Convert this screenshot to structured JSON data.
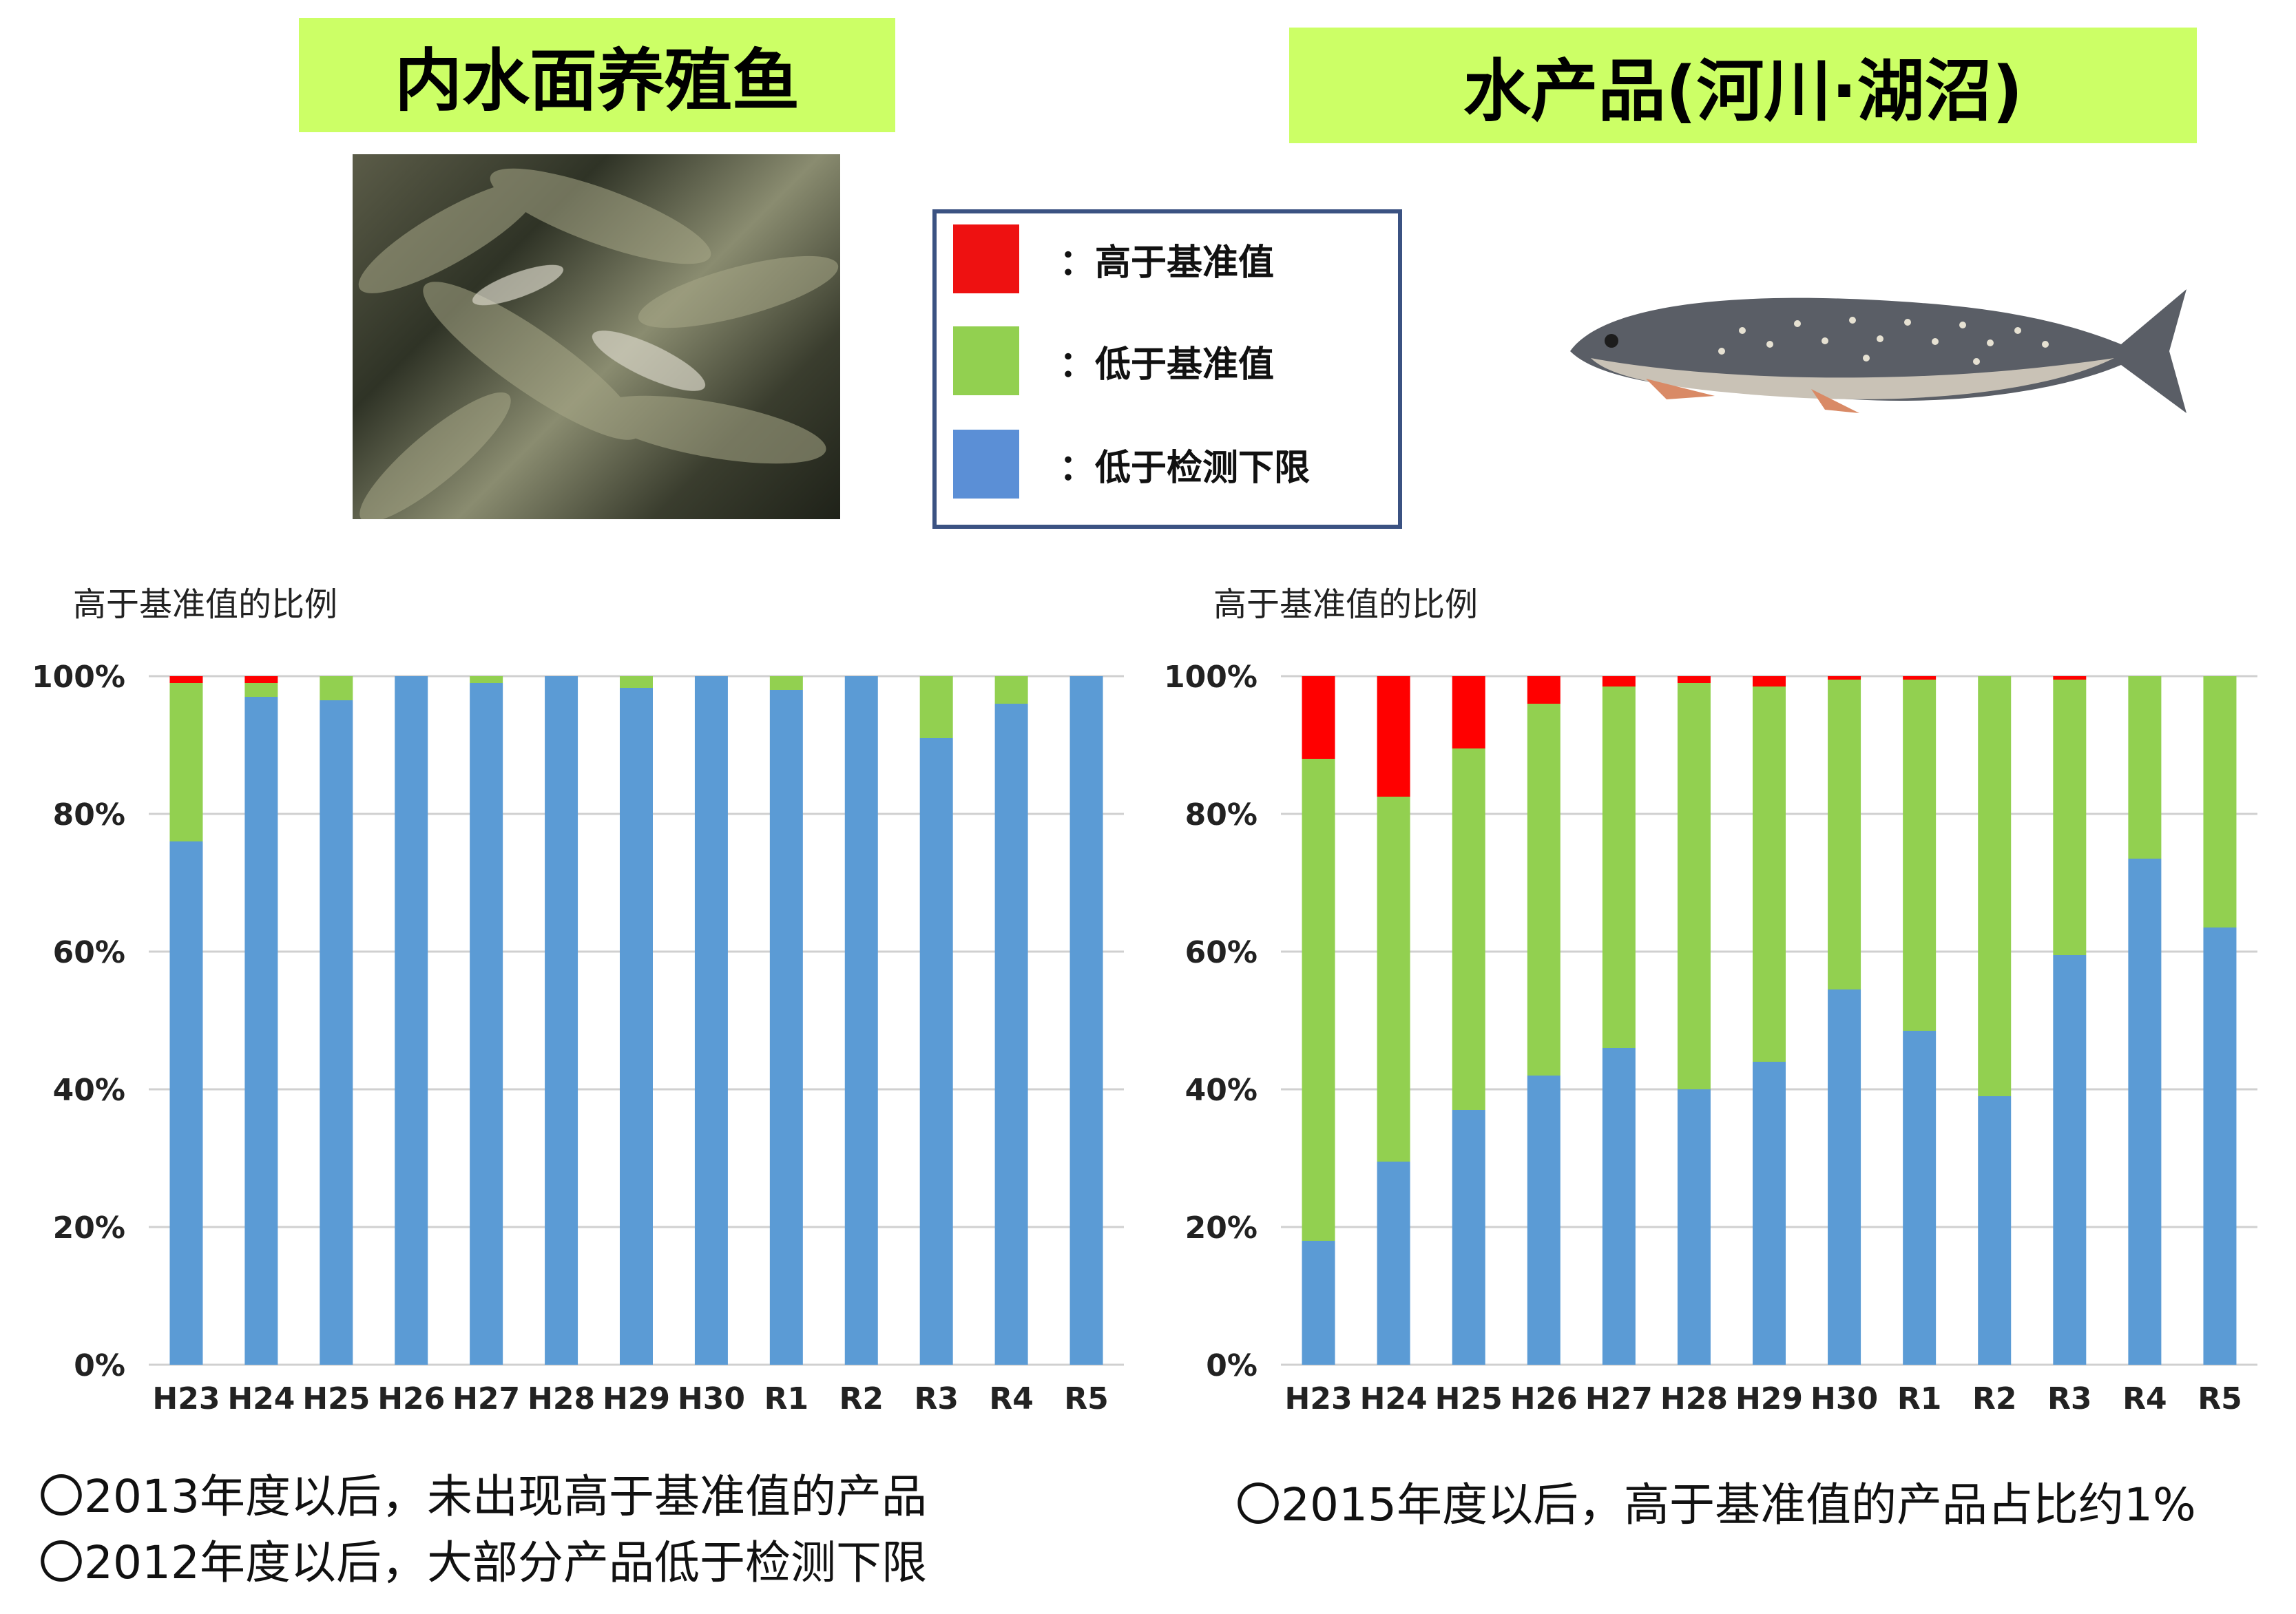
{
  "headers": {
    "left_title": "内水面养殖鱼",
    "right_title": "水产品(河川·湖沼)"
  },
  "legend": {
    "items": [
      {
        "color": "#ee1111",
        "label": "：高于基准值"
      },
      {
        "color": "#92d050",
        "label": "：低于基准值"
      },
      {
        "color": "#5b8fd6",
        "label": "：低于检测下限"
      }
    ]
  },
  "chart_data": [
    {
      "type": "bar",
      "stacked": true,
      "title": "高于基准值的比例",
      "categories": [
        "H23",
        "H24",
        "H25",
        "H26",
        "H27",
        "H28",
        "H29",
        "H30",
        "R1",
        "R2",
        "R3",
        "R4",
        "R5"
      ],
      "yticks": [
        "0%",
        "20%",
        "40%",
        "60%",
        "80%",
        "100%"
      ],
      "ylim": [
        0,
        100
      ],
      "grid": true,
      "series": [
        {
          "name": "低于检测下限",
          "color": "#5b9bd5",
          "values": [
            76,
            97,
            96.5,
            100,
            99,
            100,
            98.3,
            100,
            98,
            100,
            91,
            96,
            100
          ]
        },
        {
          "name": "低于基准值",
          "color": "#92d050",
          "values": [
            23,
            2,
            3.5,
            0,
            1,
            0,
            1.7,
            0,
            2,
            0,
            9,
            4,
            0
          ]
        },
        {
          "name": "高于基准值",
          "color": "#ff0000",
          "values": [
            1,
            1,
            0,
            0,
            0,
            0,
            0,
            0,
            0,
            0,
            0,
            0,
            0
          ]
        }
      ]
    },
    {
      "type": "bar",
      "stacked": true,
      "title": "高于基准值的比例",
      "categories": [
        "H23",
        "H24",
        "H25",
        "H26",
        "H27",
        "H28",
        "H29",
        "H30",
        "R1",
        "R2",
        "R3",
        "R4",
        "R5"
      ],
      "yticks": [
        "0%",
        "20%",
        "40%",
        "60%",
        "80%",
        "100%"
      ],
      "ylim": [
        0,
        100
      ],
      "grid": true,
      "series": [
        {
          "name": "低于检测下限",
          "color": "#5b9bd5",
          "values": [
            18,
            29.5,
            37,
            42,
            46,
            40,
            44,
            54.5,
            48.5,
            39,
            59.5,
            73.5,
            63.5
          ]
        },
        {
          "name": "低于基准值",
          "color": "#92d050",
          "values": [
            70,
            53,
            52.5,
            54,
            52.5,
            59,
            54.5,
            45,
            51,
            61,
            40,
            26.5,
            36.5
          ]
        },
        {
          "name": "高于基准值",
          "color": "#ff0000",
          "values": [
            12,
            17.5,
            10.5,
            4,
            1.5,
            1,
            1.5,
            0.5,
            0.5,
            0,
            0.5,
            0,
            0
          ]
        }
      ]
    }
  ],
  "notes": {
    "left_1": "〇2013年度以后，未出现高于基准值的产品",
    "left_2": "〇2012年度以后，大部分产品低于检测下限",
    "right_1": "〇2015年度以后，高于基准值的产品占比约1%"
  }
}
